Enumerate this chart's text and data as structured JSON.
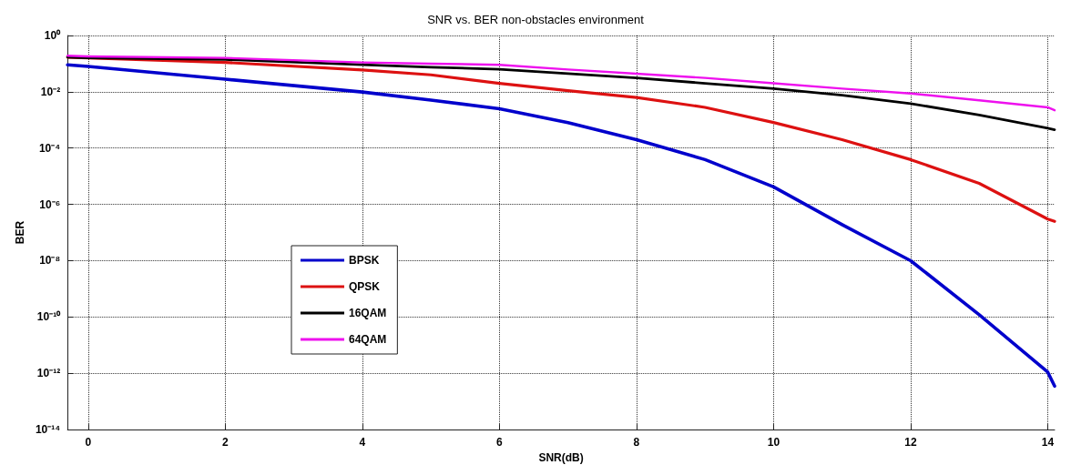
{
  "chart_data": {
    "type": "line",
    "title": "SNR vs. BER non-obstacles environment",
    "xlabel": "SNR(dB)",
    "ylabel": "BER",
    "x": [
      -0.3,
      0,
      2,
      4,
      5,
      6,
      7,
      8,
      9,
      10,
      11,
      12,
      13,
      14,
      14.1
    ],
    "series": [
      {
        "name": "BPSK",
        "color": "#0000cc",
        "values": [
          0.091,
          0.08,
          0.028,
          0.0098,
          0.0051,
          0.0025,
          0.0008,
          0.0002,
          3.9e-05,
          4.2e-06,
          1.9e-07,
          1e-08,
          1.2e-10,
          1.1e-12,
          3.5e-13
        ]
      },
      {
        "name": "QPSK",
        "color": "#dd1111",
        "values": [
          0.17,
          0.16,
          0.11,
          0.06,
          0.04,
          0.02,
          0.011,
          0.0063,
          0.0028,
          0.00081,
          0.0002,
          3.9e-05,
          5.6e-06,
          3e-07,
          2.5e-07
        ]
      },
      {
        "name": "16QAM",
        "color": "#000000",
        "values": [
          0.17,
          0.16,
          0.14,
          0.091,
          0.075,
          0.063,
          0.044,
          0.031,
          0.02,
          0.013,
          0.0076,
          0.0038,
          0.0015,
          0.00051,
          0.00045
        ]
      },
      {
        "name": "64QAM",
        "color": "#ee11ee",
        "values": [
          0.19,
          0.18,
          0.16,
          0.11,
          0.1,
          0.091,
          0.062,
          0.044,
          0.031,
          0.02,
          0.013,
          0.0087,
          0.005,
          0.0028,
          0.0022
        ]
      }
    ],
    "xlim": [
      -0.3,
      14.1
    ],
    "xticks": [
      0,
      2,
      4,
      6,
      8,
      10,
      12,
      14
    ],
    "ylim": [
      1e-14,
      1
    ],
    "yticks": [
      {
        "value": 1,
        "label": "10⁰"
      },
      {
        "value": 0.01,
        "label": "10⁻²"
      },
      {
        "value": 0.0001,
        "label": "10⁻⁴"
      },
      {
        "value": 1e-06,
        "label": "10⁻⁶"
      },
      {
        "value": 1e-08,
        "label": "10⁻⁸"
      },
      {
        "value": 1e-10,
        "label": "10⁻¹⁰"
      },
      {
        "value": 1e-12,
        "label": "10⁻¹²"
      },
      {
        "value": 1e-14,
        "label": "10⁻¹⁴"
      }
    ],
    "log": "y",
    "grid": true,
    "legend": "left",
    "marker": "none",
    "line_style": "solid"
  }
}
